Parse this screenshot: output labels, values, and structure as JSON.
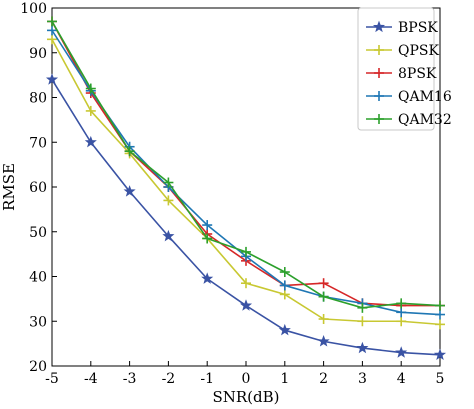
{
  "chart_data": {
    "type": "line",
    "xlabel": "SNR(dB)",
    "ylabel": "RMSE",
    "xlim": [
      -5,
      5
    ],
    "ylim": [
      20,
      100
    ],
    "x": [
      -5,
      -4,
      -3,
      -2,
      -1,
      0,
      1,
      2,
      3,
      4,
      5
    ],
    "xticks": [
      "-5",
      "-4",
      "-3",
      "-2",
      "-1",
      "0",
      "1",
      "2",
      "3",
      "4",
      "5"
    ],
    "yticks": [
      "20",
      "30",
      "40",
      "50",
      "60",
      "70",
      "80",
      "90",
      "100"
    ],
    "grid": false,
    "legend_position": "top-right",
    "series": [
      {
        "name": "BPSK",
        "color": "#3a53a4",
        "marker": "star",
        "values": [
          84,
          70,
          59,
          49,
          39.5,
          33.5,
          28,
          25.5,
          24,
          23,
          22.5
        ]
      },
      {
        "name": "QPSK",
        "color": "#c8c832",
        "marker": "plus",
        "values": [
          93,
          77,
          67.5,
          57,
          48.5,
          38.5,
          36,
          30.5,
          30,
          30,
          29.3
        ]
      },
      {
        "name": "8PSK",
        "color": "#d62728",
        "marker": "plus",
        "values": [
          97,
          81,
          68,
          60,
          49.5,
          43.5,
          38,
          38.5,
          34,
          33.5,
          33.5
        ]
      },
      {
        "name": "QAM16",
        "color": "#1f77b4",
        "marker": "plus",
        "values": [
          95,
          81.5,
          69,
          60,
          51.5,
          44.5,
          38,
          35.5,
          34,
          32,
          31.5
        ]
      },
      {
        "name": "QAM32",
        "color": "#2ca02c",
        "marker": "plus",
        "values": [
          97,
          82,
          68,
          61,
          48.5,
          45.5,
          41,
          35.5,
          33,
          34,
          33.5
        ]
      }
    ]
  }
}
